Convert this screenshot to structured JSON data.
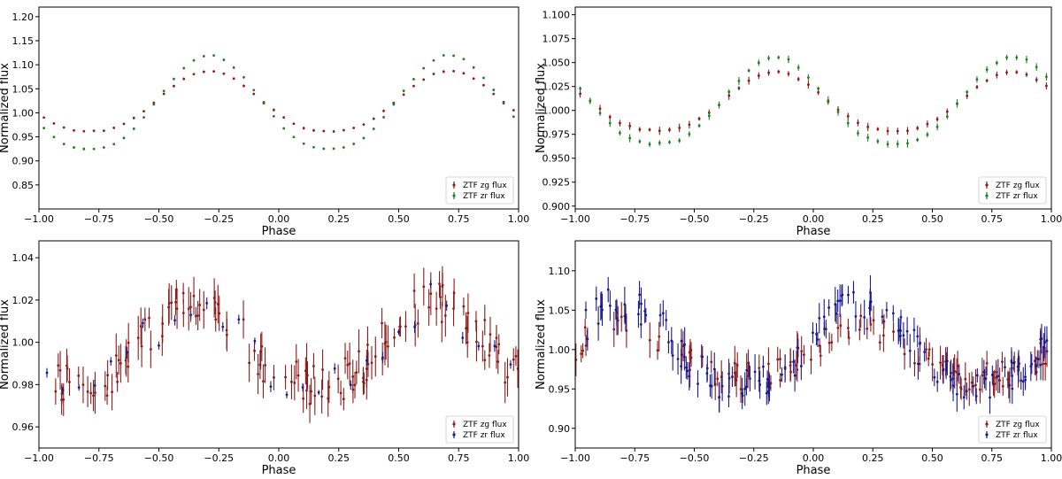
{
  "panels": [
    {
      "id": "top-left",
      "chart_data": {
        "type": "scatter",
        "xlabel": "Phase",
        "ylabel": "Normalized flux",
        "xlim": [
          -1.0,
          1.0
        ],
        "ylim": [
          0.8,
          1.22
        ],
        "xticks": [
          -1.0,
          -0.75,
          -0.5,
          -0.25,
          0.0,
          0.25,
          0.5,
          0.75,
          1.0
        ],
        "xtick_labels": [
          "−1.00",
          "−0.75",
          "−0.50",
          "−0.25",
          "0.00",
          "0.25",
          "0.50",
          "0.75",
          "1.00"
        ],
        "yticks": [
          0.85,
          0.9,
          0.95,
          1.0,
          1.05,
          1.1,
          1.15,
          1.2
        ],
        "ytick_labels": [
          "0.85",
          "0.90",
          "0.95",
          "1.00",
          "1.05",
          "1.10",
          "1.15",
          "1.20"
        ],
        "grid": false,
        "legend_position": "bottom-right",
        "series": [
          {
            "name": "ZTF zg flux",
            "color": "#8b1a1a",
            "model": {
              "period": 1.0,
              "center": 1.022,
              "amp": 0.065,
              "peaks": [
                -0.29,
                0.71
              ],
              "min": 0.962
            },
            "n": 48,
            "err": 0.002,
            "noise": 0.001
          },
          {
            "name": "ZTF zr flux",
            "color": "#1e7d1e",
            "model": {
              "period": 1.0,
              "center": 1.022,
              "amp": 0.098,
              "peaks": [
                -0.29,
                0.71
              ],
              "min": 0.925
            },
            "n": 48,
            "err": 0.002,
            "noise": 0.001
          }
        ]
      }
    },
    {
      "id": "top-right",
      "chart_data": {
        "type": "scatter",
        "xlabel": "Phase",
        "ylabel": "Normalized flux",
        "xlim": [
          -1.0,
          1.0
        ],
        "ylim": [
          0.897,
          1.108
        ],
        "xticks": [
          -1.0,
          -0.75,
          -0.5,
          -0.25,
          0.0,
          0.25,
          0.5,
          0.75,
          1.0
        ],
        "xtick_labels": [
          "−1.00",
          "−0.75",
          "−0.50",
          "−0.25",
          "0.00",
          "0.25",
          "0.50",
          "0.75",
          "1.00"
        ],
        "yticks": [
          0.9,
          0.925,
          0.95,
          0.975,
          1.0,
          1.025,
          1.05,
          1.075,
          1.1
        ],
        "ytick_labels": [
          "0.900",
          "0.925",
          "0.950",
          "0.975",
          "1.000",
          "1.025",
          "1.050",
          "1.075",
          "1.100"
        ],
        "grid": false,
        "legend_position": "bottom-right",
        "series": [
          {
            "name": "ZTF zg flux",
            "color": "#8b1a1a",
            "model": {
              "period": 1.0,
              "center": 1.01,
              "amp": 0.03,
              "peaks": [
                -0.16,
                0.84
              ],
              "min": 0.979
            },
            "n": 48,
            "err": 0.003,
            "noise": 0.001
          },
          {
            "name": "ZTF zr flux",
            "color": "#1e7d1e",
            "model": {
              "period": 1.0,
              "center": 1.01,
              "amp": 0.046,
              "peaks": [
                -0.16,
                0.84
              ],
              "min": 0.965
            },
            "n": 48,
            "err": 0.003,
            "noise": 0.001
          }
        ]
      }
    },
    {
      "id": "bottom-left",
      "chart_data": {
        "type": "scatter",
        "xlabel": "Phase",
        "ylabel": "Normalized flux",
        "xlim": [
          -1.0,
          1.0
        ],
        "ylim": [
          0.95,
          1.048
        ],
        "xticks": [
          -1.0,
          -0.75,
          -0.5,
          -0.25,
          0.0,
          0.25,
          0.5,
          0.75,
          1.0
        ],
        "xtick_labels": [
          "−1.00",
          "−0.75",
          "−0.50",
          "−0.25",
          "0.00",
          "0.25",
          "0.50",
          "0.75",
          "1.00"
        ],
        "yticks": [
          0.96,
          0.98,
          1.0,
          1.02,
          1.04
        ],
        "ytick_labels": [
          "0.96",
          "0.98",
          "1.00",
          "1.02",
          "1.04"
        ],
        "grid": false,
        "legend_position": "bottom-right",
        "series": [
          {
            "name": "ZTF zg flux",
            "color": "#8b1a1a",
            "model": {
              "period": 1.0,
              "center": 0.998,
              "amp": 0.02,
              "peaks": [
                -0.35,
                0.65
              ],
              "min": 0.98
            },
            "n": 150,
            "err": 0.007,
            "noise": 0.01
          },
          {
            "name": "ZTF zr flux",
            "color": "#1a1a8b",
            "model": {
              "period": 1.0,
              "center": 0.998,
              "amp": 0.02,
              "peaks": [
                -0.35,
                0.65
              ],
              "min": 0.98
            },
            "n": 30,
            "err": 0.002,
            "noise": 0.01
          }
        ]
      }
    },
    {
      "id": "bottom-right",
      "chart_data": {
        "type": "scatter",
        "xlabel": "Phase",
        "ylabel": "Normalized flux",
        "xlim": [
          -1.0,
          1.0
        ],
        "ylim": [
          0.875,
          1.138
        ],
        "xticks": [
          -1.0,
          -0.75,
          -0.5,
          -0.25,
          0.0,
          0.25,
          0.5,
          0.75,
          1.0
        ],
        "xtick_labels": [
          "−1.00",
          "−0.75",
          "−0.50",
          "−0.25",
          "0.00",
          "0.25",
          "0.50",
          "0.75",
          "1.00"
        ],
        "yticks": [
          0.9,
          0.95,
          1.0,
          1.05,
          1.1
        ],
        "ytick_labels": [
          "0.90",
          "0.95",
          "1.00",
          "1.05",
          "1.10"
        ],
        "grid": false,
        "legend_position": "bottom-right",
        "series": [
          {
            "name": "ZTF zg flux",
            "color": "#8b1a1a",
            "model": {
              "period": 1.0,
              "center": 1.0,
              "amp": 0.03,
              "peaks": [
                -0.8,
                0.2
              ],
              "min": 0.965
            },
            "n": 120,
            "err": 0.015,
            "noise": 0.018
          },
          {
            "name": "ZTF zr flux",
            "color": "#1a1a8b",
            "model": {
              "period": 1.0,
              "center": 1.005,
              "amp": 0.055,
              "peaks": [
                -0.8,
                0.2
              ],
              "min": 0.955
            },
            "n": 150,
            "err": 0.015,
            "noise": 0.022
          }
        ]
      }
    }
  ]
}
